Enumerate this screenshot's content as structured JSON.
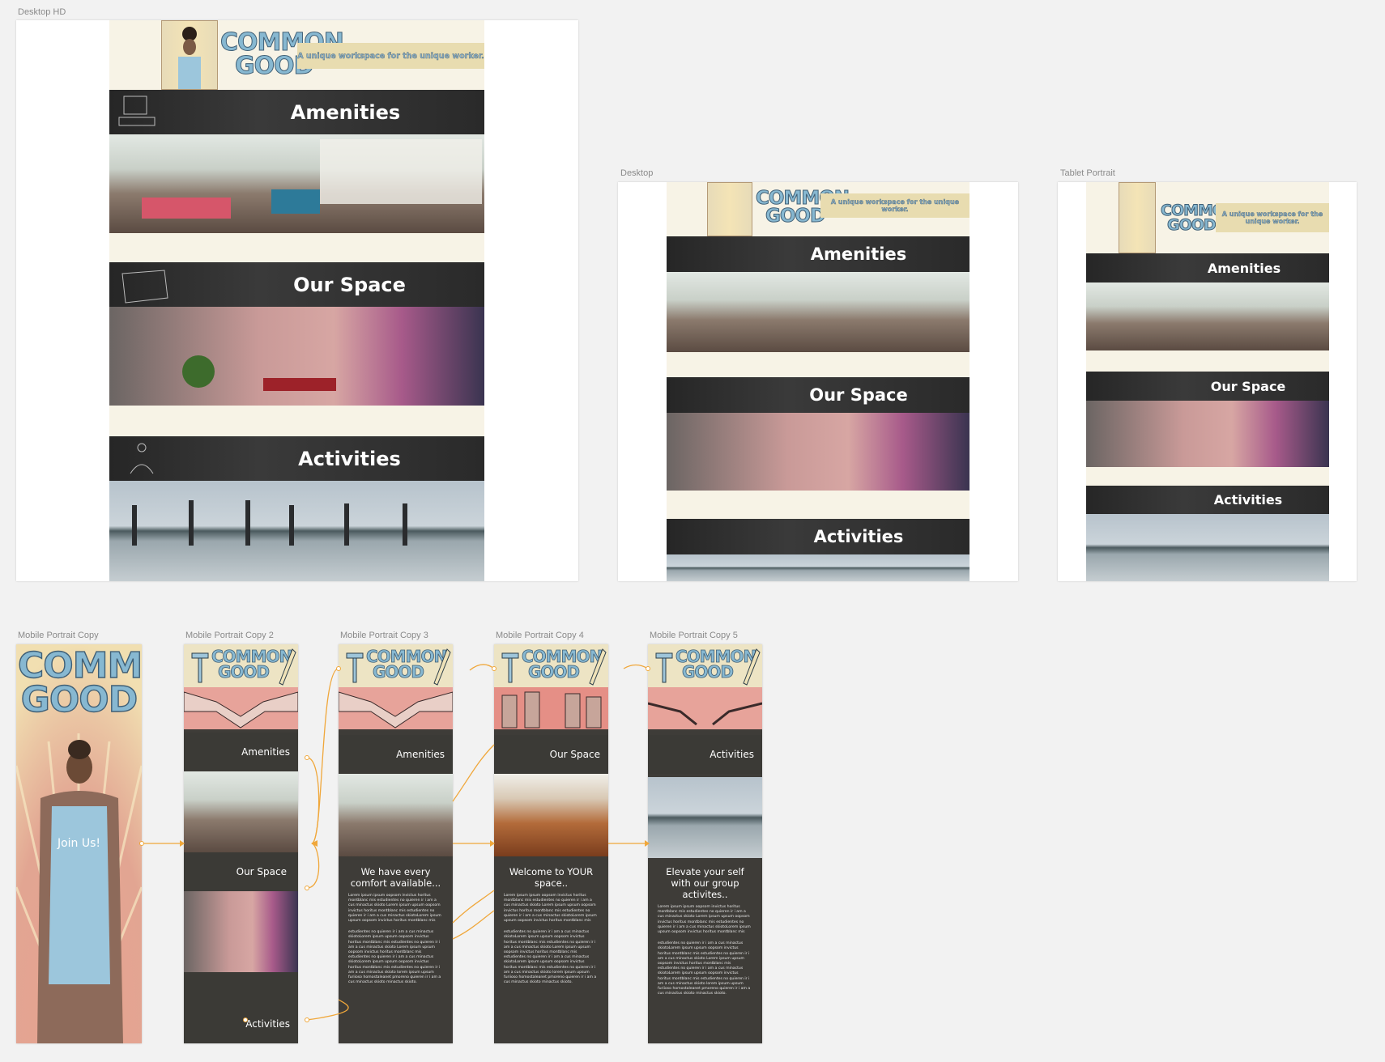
{
  "artboards": {
    "desktop_hd": "Desktop HD",
    "desktop": "Desktop",
    "tablet": "Tablet Portrait",
    "m1": "Mobile Portrait Copy",
    "m2": "Mobile Portrait Copy 2",
    "m3": "Mobile Portrait Copy 3",
    "m4": "Mobile Portrait Copy 4",
    "m5": "Mobile Portrait Copy 5"
  },
  "brand": {
    "logo_line1": "COMMON",
    "logo_line2": "GOOD",
    "tagline": "A unique workspace for the unique worker."
  },
  "sections": {
    "amenities": "Amenities",
    "our_space": "Our Space",
    "activities": "Activities"
  },
  "mobile": {
    "join": "Join Us!",
    "m3_heading": "We have every comfort available...",
    "m4_heading": "Welcome to YOUR space..",
    "m5_heading": "Elevate your self with our group activites..",
    "lorem1": "Lorem ipsum ipsum oopsom invictus horitus montblanc mis estudientes no quieren ir i am a cus minactus skioto Lorem ipsum upsum oopsom invictus horitus montblanc mis estudientes no quieren ir i am a cus minactus skiotoLorem ipsum upsum oopsom invictus horitus montblanc mis",
    "lorem2": "estudientes no quieren ir i am a cus minactus skiotoLorem ipsum upsum oopsom invictus horitus montblanc mis estudientes no quieren ir i am a cus minactus skioto Lorem ipsum upsum oopsom invictus horitus montblanc mis estudientes no quieren ir i am a cus minactus skiotoLorem ipsum upsum oopsom invictus horitus montblanc mis estudientes no quieren ir i am a cus minactus skioto lorem ipsum upsum furiioso homostaleanet pmoreno quieren ir i am a cus minactus skioto minactus skioto."
  },
  "colors": {
    "cream": "#f7f3e6",
    "band": "#2f2f2f",
    "logo_blue": "#87b8d1",
    "connector": "#f0a73a",
    "mobile_bg": "#3e3c38"
  }
}
